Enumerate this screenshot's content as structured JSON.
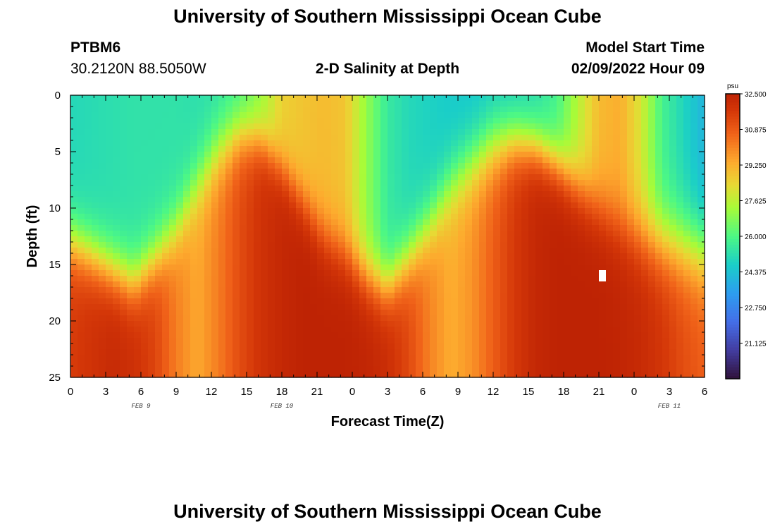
{
  "header": {
    "title": "University of Southern Mississippi Ocean Cube",
    "station": "PTBM6",
    "coords": "30.2120N  88.5050W",
    "subtitle": "2-D Salinity at Depth",
    "model_start_label": "Model Start Time",
    "model_start_value": "02/09/2022 Hour 09"
  },
  "footer": {
    "title": "University of Southern Mississippi Ocean Cube"
  },
  "chart_data": {
    "type": "heatmap",
    "title": "2-D Salinity at Depth",
    "xlabel": "Forecast Time(Z)",
    "ylabel": "Depth (ft)",
    "x_tick_labels": [
      "0",
      "3",
      "6",
      "9",
      "12",
      "15",
      "18",
      "21",
      "0",
      "3",
      "6",
      "9",
      "12",
      "15",
      "18",
      "21",
      "0",
      "3",
      "6"
    ],
    "x_range_hours": [
      0,
      54
    ],
    "y_ticks": [
      0,
      5,
      10,
      15,
      20,
      25
    ],
    "y_range_ft": [
      0,
      25
    ],
    "date_labels": [
      {
        "text": "FEB 9",
        "hour": 6
      },
      {
        "text": "FEB 10",
        "hour": 18
      },
      {
        "text": "FEB 11",
        "hour": 51
      }
    ],
    "colorbar": {
      "unit": "psu",
      "min": 19.5,
      "max": 32.5,
      "tick_labels": [
        "32.500",
        "30.875",
        "29.250",
        "27.625",
        "26.000",
        "24.375",
        "22.750",
        "21.125"
      ],
      "tick_values": [
        32.5,
        30.875,
        29.25,
        27.625,
        26.0,
        24.375,
        22.75,
        21.125
      ]
    },
    "surface_salinity_psu": [
      25.0,
      25.1,
      25.2,
      25.3,
      25.3,
      25.3,
      25.2,
      25.3,
      25.8,
      27.0,
      28.5,
      28.8,
      29.0,
      28.8,
      27.0,
      25.5,
      25.0,
      24.8,
      24.6,
      24.5,
      24.6,
      24.8,
      25.1,
      25.8,
      27.5,
      29.0,
      29.3,
      28.0,
      25.8,
      24.9,
      24.0
    ],
    "bottom_salinity_psu": [
      31.6,
      31.9,
      32.2,
      32.0,
      31.4,
      30.2,
      29.4,
      30.2,
      31.2,
      31.9,
      32.3,
      32.5,
      32.5,
      32.5,
      32.4,
      32.1,
      31.3,
      30.1,
      29.3,
      29.8,
      30.8,
      31.7,
      32.3,
      32.5,
      32.5,
      32.5,
      32.4,
      32.2,
      31.8,
      31.2,
      30.8
    ],
    "halocline_depth_ft": [
      13.0,
      14.2,
      15.5,
      16.6,
      14.5,
      12.0,
      8.0,
      5.0,
      3.5,
      4.0,
      6.5,
      9.5,
      12.5,
      14.0,
      16.0,
      17.0,
      14.5,
      11.5,
      8.0,
      6.0,
      4.5,
      4.0,
      4.5,
      6.0,
      8.0,
      10.0,
      11.5,
      12.5,
      13.0,
      13.5,
      14.0
    ],
    "halocline_thickness_ft": [
      3.5,
      3.5,
      3.5,
      3.5,
      3.5,
      3.8,
      4.0,
      4.0,
      3.5,
      3.0,
      3.0,
      3.2,
      3.5,
      3.5,
      3.5,
      3.5,
      3.8,
      4.0,
      4.2,
      4.2,
      4.2,
      3.5,
      3.2,
      3.2,
      3.5,
      3.8,
      4.0,
      4.2,
      4.5,
      4.8,
      5.0
    ],
    "missing_cell": {
      "hour": 45.5,
      "depth_ft": 16
    }
  }
}
